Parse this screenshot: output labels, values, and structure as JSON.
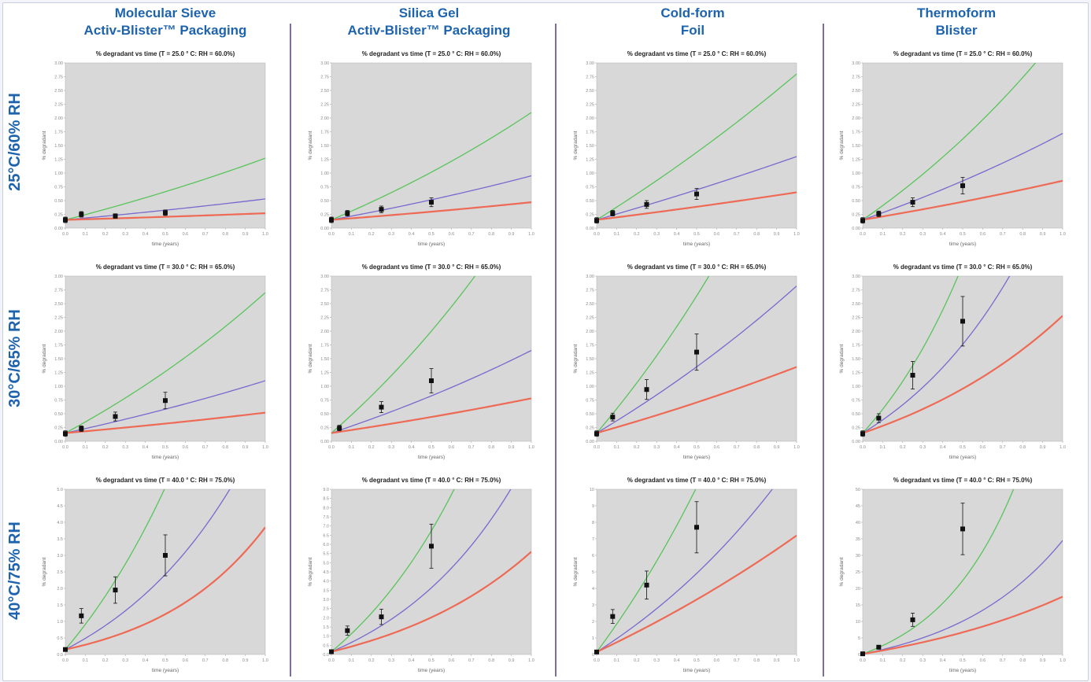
{
  "columns": [
    {
      "line1": "Molecular Sieve",
      "line2": "Activ-Blister™ Packaging"
    },
    {
      "line1": "Silica Gel",
      "line2": "Activ-Blister™ Packaging"
    },
    {
      "line1": "Cold-form",
      "line2": "Foil"
    },
    {
      "line1": "Thermoform",
      "line2": "Blister"
    }
  ],
  "rows": [
    {
      "label": "25°C/60% RH"
    },
    {
      "label": "30°C/65% RH"
    },
    {
      "label": "40°C/75% RH"
    }
  ],
  "colors": {
    "green": "#58c45a",
    "blue": "#7a68cf",
    "red": "#ee6a55",
    "plot_bg": "#d8d8d8",
    "heading": "#1e63ad"
  },
  "chart_data": [
    {
      "type": "line",
      "title": "% degradant vs time (T = 25.0 ° C: RH = 60.0%)",
      "xlabel": "time (years)",
      "ylabel": "% degradant",
      "xlim": [
        0,
        1
      ],
      "ylim": [
        0,
        3
      ],
      "yticks": [
        "0.00",
        "0.25",
        "0.50",
        "0.75",
        "1.00",
        "1.25",
        "1.50",
        "1.75",
        "2.00",
        "2.25",
        "2.50",
        "2.75",
        "3.00"
      ],
      "series": [
        {
          "color": "green",
          "y0": 0.15,
          "y1": 1.27,
          "k": 0.35
        },
        {
          "color": "blue",
          "y0": 0.15,
          "y1": 0.53,
          "k": 0.3
        },
        {
          "color": "red",
          "y0": 0.15,
          "y1": 0.27,
          "k": 0.3
        }
      ],
      "points": [
        {
          "x": 0.0,
          "y": 0.15,
          "err": 0.05
        },
        {
          "x": 0.08,
          "y": 0.25,
          "err": 0.05
        },
        {
          "x": 0.25,
          "y": 0.22,
          "err": 0.04
        },
        {
          "x": 0.5,
          "y": 0.28,
          "err": 0.05
        }
      ]
    },
    {
      "type": "line",
      "title": "% degradant vs time (T = 25.0 ° C: RH = 60.0%)",
      "xlabel": "time (years)",
      "ylabel": "% degradant",
      "xlim": [
        0,
        1
      ],
      "ylim": [
        0,
        3
      ],
      "yticks": [
        "0.00",
        "0.25",
        "0.50",
        "0.75",
        "1.00",
        "1.25",
        "1.50",
        "1.75",
        "2.00",
        "2.25",
        "2.50",
        "2.75",
        "3.00"
      ],
      "series": [
        {
          "color": "green",
          "y0": 0.15,
          "y1": 2.1,
          "k": 0.45
        },
        {
          "color": "blue",
          "y0": 0.15,
          "y1": 0.95,
          "k": 0.35
        },
        {
          "color": "red",
          "y0": 0.15,
          "y1": 0.47,
          "k": 0.3
        }
      ],
      "points": [
        {
          "x": 0.0,
          "y": 0.15,
          "err": 0.05
        },
        {
          "x": 0.08,
          "y": 0.27,
          "err": 0.05
        },
        {
          "x": 0.25,
          "y": 0.34,
          "err": 0.06
        },
        {
          "x": 0.5,
          "y": 0.47,
          "err": 0.08
        }
      ]
    },
    {
      "type": "line",
      "title": "% degradant vs time (T = 25.0 ° C: RH = 60.0%)",
      "xlabel": "time (years)",
      "ylabel": "% degradant",
      "xlim": [
        0,
        1
      ],
      "ylim": [
        0,
        3
      ],
      "yticks": [
        "0.00",
        "0.25",
        "0.50",
        "0.75",
        "1.00",
        "1.25",
        "1.50",
        "1.75",
        "2.00",
        "2.25",
        "2.50",
        "2.75",
        "3.00"
      ],
      "series": [
        {
          "color": "green",
          "y0": 0.15,
          "y1": 2.8,
          "k": 0.3
        },
        {
          "color": "blue",
          "y0": 0.15,
          "y1": 1.3,
          "k": 0.2
        },
        {
          "color": "red",
          "y0": 0.15,
          "y1": 0.65,
          "k": 0.2
        }
      ],
      "points": [
        {
          "x": 0.0,
          "y": 0.14,
          "err": 0.05
        },
        {
          "x": 0.08,
          "y": 0.27,
          "err": 0.05
        },
        {
          "x": 0.25,
          "y": 0.43,
          "err": 0.07
        },
        {
          "x": 0.5,
          "y": 0.62,
          "err": 0.1
        }
      ]
    },
    {
      "type": "line",
      "title": "% degradant vs time (T = 25.0 ° C: RH = 60.0%)",
      "xlabel": "time (years)",
      "ylabel": "% degradant",
      "xlim": [
        0,
        1
      ],
      "ylim": [
        0,
        3
      ],
      "yticks": [
        "0.00",
        "0.25",
        "0.50",
        "0.75",
        "1.00",
        "1.25",
        "1.50",
        "1.75",
        "2.00",
        "2.25",
        "2.50",
        "2.75",
        "3.00"
      ],
      "series": [
        {
          "color": "green",
          "y0": 0.15,
          "y1": 3.6,
          "k": 0.6
        },
        {
          "color": "blue",
          "y0": 0.15,
          "y1": 1.72,
          "k": 0.4
        },
        {
          "color": "red",
          "y0": 0.15,
          "y1": 0.86,
          "k": 0.3
        }
      ],
      "points": [
        {
          "x": 0.0,
          "y": 0.14,
          "err": 0.05
        },
        {
          "x": 0.08,
          "y": 0.26,
          "err": 0.05
        },
        {
          "x": 0.25,
          "y": 0.47,
          "err": 0.08
        },
        {
          "x": 0.5,
          "y": 0.77,
          "err": 0.15
        }
      ]
    },
    {
      "type": "line",
      "title": "% degradant vs time (T = 30.0 ° C: RH = 65.0%)",
      "xlabel": "time (years)",
      "ylabel": "% degradant",
      "xlim": [
        0,
        1
      ],
      "ylim": [
        0,
        3
      ],
      "yticks": [
        "0.00",
        "0.25",
        "0.50",
        "0.75",
        "1.00",
        "1.25",
        "1.50",
        "1.75",
        "2.00",
        "2.25",
        "2.50",
        "2.75",
        "3.00"
      ],
      "series": [
        {
          "color": "green",
          "y0": 0.15,
          "y1": 2.7,
          "k": 0.5
        },
        {
          "color": "blue",
          "y0": 0.15,
          "y1": 1.1,
          "k": 0.35
        },
        {
          "color": "red",
          "y0": 0.15,
          "y1": 0.52,
          "k": 0.3
        }
      ],
      "points": [
        {
          "x": 0.0,
          "y": 0.14,
          "err": 0.05
        },
        {
          "x": 0.08,
          "y": 0.23,
          "err": 0.05
        },
        {
          "x": 0.25,
          "y": 0.45,
          "err": 0.08
        },
        {
          "x": 0.5,
          "y": 0.74,
          "err": 0.15
        }
      ]
    },
    {
      "type": "line",
      "title": "% degradant vs time (T = 30.0 ° C: RH = 65.0%)",
      "xlabel": "time (years)",
      "ylabel": "% degradant",
      "xlim": [
        0,
        1
      ],
      "ylim": [
        0,
        3
      ],
      "yticks": [
        "0.00",
        "0.25",
        "0.50",
        "0.75",
        "1.00",
        "1.25",
        "1.50",
        "1.75",
        "2.00",
        "2.25",
        "2.50",
        "2.75",
        "3.00"
      ],
      "series": [
        {
          "color": "green",
          "y0": 0.15,
          "y1": 4.5,
          "k": 0.6
        },
        {
          "color": "blue",
          "y0": 0.15,
          "y1": 1.65,
          "k": 0.4
        },
        {
          "color": "red",
          "y0": 0.15,
          "y1": 0.78,
          "k": 0.3
        }
      ],
      "points": [
        {
          "x": 0.04,
          "y": 0.24,
          "err": 0.05
        },
        {
          "x": 0.25,
          "y": 0.62,
          "err": 0.1
        },
        {
          "x": 0.5,
          "y": 1.1,
          "err": 0.22
        }
      ]
    },
    {
      "type": "line",
      "title": "% degradant vs time (T = 30.0 ° C: RH = 65.0%)",
      "xlabel": "time (years)",
      "ylabel": "% degradant",
      "xlim": [
        0,
        1
      ],
      "ylim": [
        0,
        3
      ],
      "yticks": [
        "0.00",
        "0.25",
        "0.50",
        "0.75",
        "1.00",
        "1.25",
        "1.50",
        "1.75",
        "2.00",
        "2.25",
        "2.50",
        "2.75",
        "3.00"
      ],
      "series": [
        {
          "color": "green",
          "y0": 0.15,
          "y1": 6.0,
          "k": 0.6
        },
        {
          "color": "blue",
          "y0": 0.15,
          "y1": 2.82,
          "k": 0.4
        },
        {
          "color": "red",
          "y0": 0.15,
          "y1": 1.35,
          "k": 0.3
        }
      ],
      "points": [
        {
          "x": 0.0,
          "y": 0.14,
          "err": 0.05
        },
        {
          "x": 0.08,
          "y": 0.44,
          "err": 0.07
        },
        {
          "x": 0.25,
          "y": 0.94,
          "err": 0.18
        },
        {
          "x": 0.5,
          "y": 1.62,
          "err": 0.33
        }
      ]
    },
    {
      "type": "line",
      "title": "% degradant vs time (T = 30.0 ° C: RH = 65.0%)",
      "xlabel": "time (years)",
      "ylabel": "% degradant",
      "xlim": [
        0,
        1
      ],
      "ylim": [
        0,
        3
      ],
      "yticks": [
        "0.00",
        "0.25",
        "0.50",
        "0.75",
        "1.00",
        "1.25",
        "1.50",
        "1.75",
        "2.00",
        "2.25",
        "2.50",
        "2.75",
        "3.00"
      ],
      "series": [
        {
          "color": "green",
          "y0": 0.15,
          "y1": 10.0,
          "k": 1.6
        },
        {
          "color": "blue",
          "y0": 0.15,
          "y1": 5.0,
          "k": 1.4
        },
        {
          "color": "red",
          "y0": 0.15,
          "y1": 2.28,
          "k": 1.0
        }
      ],
      "points": [
        {
          "x": 0.0,
          "y": 0.14,
          "err": 0.05
        },
        {
          "x": 0.08,
          "y": 0.42,
          "err": 0.08
        },
        {
          "x": 0.25,
          "y": 1.2,
          "err": 0.25
        },
        {
          "x": 0.5,
          "y": 2.18,
          "err": 0.45
        }
      ]
    },
    {
      "type": "line",
      "title": "% degradant vs time (T = 40.0 ° C: RH = 75.0%)",
      "xlabel": "time (years)",
      "ylabel": "% degradant",
      "xlim": [
        0,
        1
      ],
      "ylim": [
        0,
        5
      ],
      "yticks": [
        "0.0",
        "0.5",
        "1.0",
        "1.5",
        "2.0",
        "2.5",
        "3.0",
        "3.5",
        "4.0",
        "4.5",
        "5.0"
      ],
      "series": [
        {
          "color": "green",
          "y0": 0.15,
          "y1": 14.0,
          "k": 1.2
        },
        {
          "color": "blue",
          "y0": 0.15,
          "y1": 7.0,
          "k": 1.4
        },
        {
          "color": "red",
          "y0": 0.15,
          "y1": 3.85,
          "k": 1.8
        }
      ],
      "points": [
        {
          "x": 0.0,
          "y": 0.15,
          "err": 0.05
        },
        {
          "x": 0.08,
          "y": 1.17,
          "err": 0.22
        },
        {
          "x": 0.25,
          "y": 1.95,
          "err": 0.4
        },
        {
          "x": 0.5,
          "y": 3.0,
          "err": 0.62
        }
      ]
    },
    {
      "type": "line",
      "title": "% degradant vs time (T = 40.0 ° C: RH = 75.0%)",
      "xlabel": "time (years)",
      "ylabel": "% degradant",
      "xlim": [
        0,
        1
      ],
      "ylim": [
        0,
        9
      ],
      "yticks": [
        "0.0",
        "0.5",
        "1.0",
        "1.5",
        "2.0",
        "2.5",
        "3.0",
        "3.5",
        "4.0",
        "4.5",
        "5.0",
        "5.5",
        "6.0",
        "6.5",
        "7.0",
        "7.5",
        "8.0",
        "8.5",
        "9.0"
      ],
      "series": [
        {
          "color": "green",
          "y0": 0.15,
          "y1": 20.0,
          "k": 1.4
        },
        {
          "color": "blue",
          "y0": 0.15,
          "y1": 11.0,
          "k": 1.5
        },
        {
          "color": "red",
          "y0": 0.15,
          "y1": 5.6,
          "k": 1.3
        }
      ],
      "points": [
        {
          "x": 0.0,
          "y": 0.15,
          "err": 0.05
        },
        {
          "x": 0.08,
          "y": 1.3,
          "err": 0.25
        },
        {
          "x": 0.25,
          "y": 2.05,
          "err": 0.42
        },
        {
          "x": 0.5,
          "y": 5.9,
          "err": 1.2
        }
      ]
    },
    {
      "type": "line",
      "title": "% degradant vs time (T = 40.0 ° C: RH = 75.0%)",
      "xlabel": "time (years)",
      "ylabel": "% degradant",
      "xlim": [
        0,
        1
      ],
      "ylim": [
        0,
        10
      ],
      "yticks": [
        "0",
        "1",
        "2",
        "3",
        "4",
        "5",
        "6",
        "7",
        "8",
        "9",
        "10"
      ],
      "series": [
        {
          "color": "green",
          "y0": 0.15,
          "y1": 25.0,
          "k": 0.8
        },
        {
          "color": "blue",
          "y0": 0.15,
          "y1": 12.0,
          "k": 0.8
        },
        {
          "color": "red",
          "y0": 0.15,
          "y1": 7.2,
          "k": 0.4
        }
      ],
      "points": [
        {
          "x": 0.0,
          "y": 0.15,
          "err": 0.05
        },
        {
          "x": 0.08,
          "y": 2.3,
          "err": 0.42
        },
        {
          "x": 0.25,
          "y": 4.2,
          "err": 0.85
        },
        {
          "x": 0.5,
          "y": 7.7,
          "err": 1.55
        }
      ]
    },
    {
      "type": "line",
      "title": "% degradant vs time (T = 40.0 ° C: RH = 75.0%)",
      "xlabel": "time (years)",
      "ylabel": "% degradant",
      "xlim": [
        0,
        1
      ],
      "ylim": [
        0,
        50
      ],
      "yticks": [
        "0",
        "5",
        "10",
        "15",
        "20",
        "25",
        "30",
        "35",
        "40",
        "45",
        "50"
      ],
      "series": [
        {
          "color": "green",
          "y0": 0.15,
          "y1": 100.0,
          "k": 2.5
        },
        {
          "color": "blue",
          "y0": 0.15,
          "y1": 34.5,
          "k": 1.8
        },
        {
          "color": "red",
          "y0": 0.15,
          "y1": 17.5,
          "k": 1.0
        }
      ],
      "points": [
        {
          "x": 0.0,
          "y": 0.2,
          "err": 0.1
        },
        {
          "x": 0.08,
          "y": 2.2,
          "err": 0.5
        },
        {
          "x": 0.25,
          "y": 10.5,
          "err": 2.0
        },
        {
          "x": 0.5,
          "y": 38.0,
          "err": 7.8
        }
      ]
    }
  ]
}
